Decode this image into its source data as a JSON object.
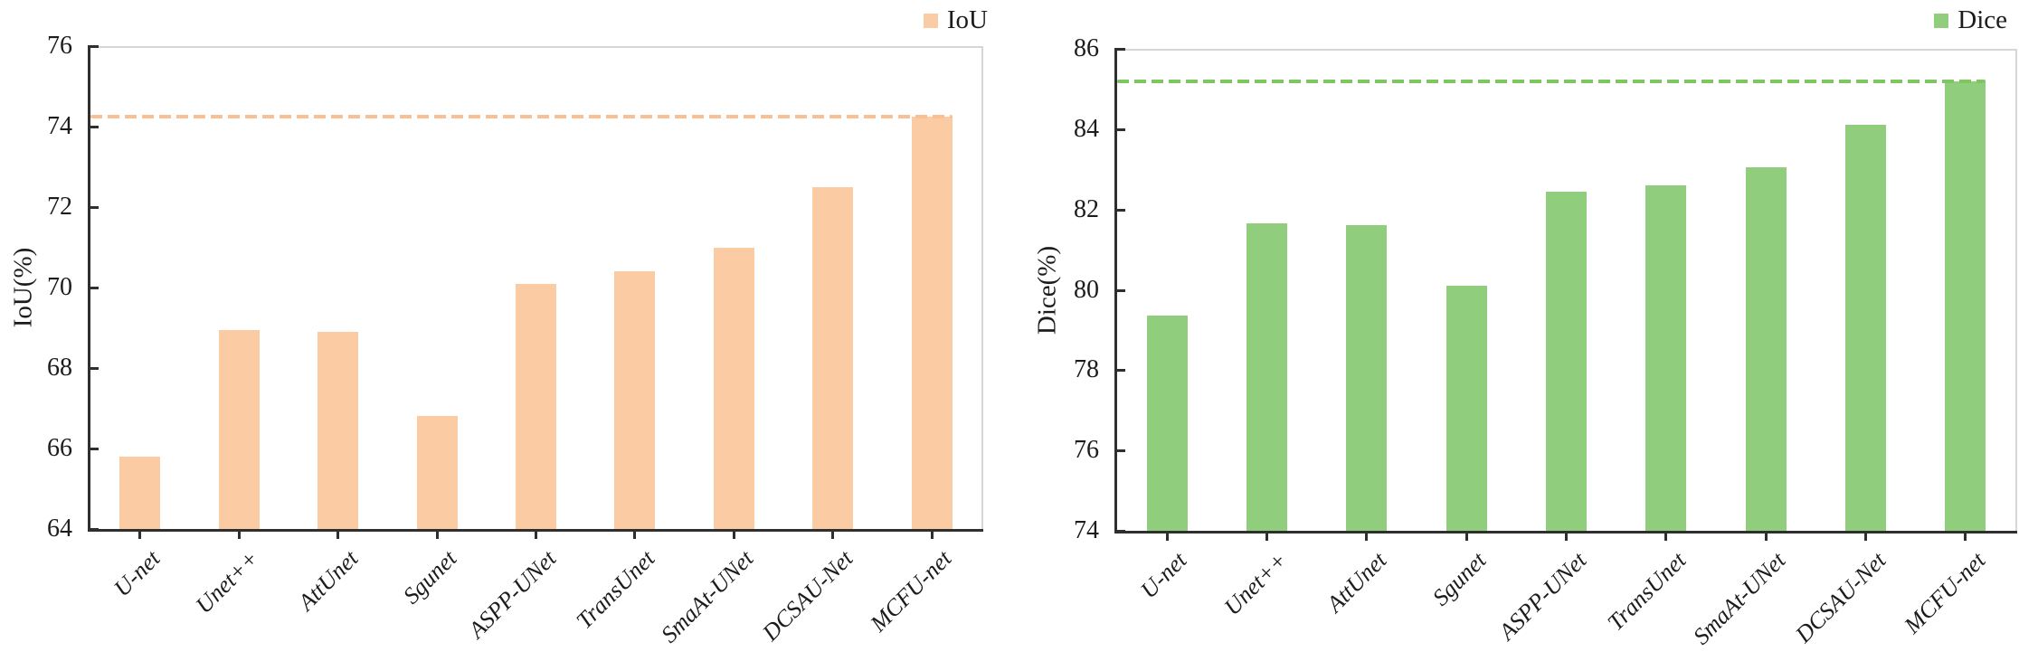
{
  "chart_data": [
    {
      "type": "bar",
      "title": "",
      "legend": "IoU",
      "legend_position": "top-right",
      "ylabel": "IoU(%)",
      "xlabel": "",
      "categories": [
        "U-net",
        "Unet++",
        "AttUnet",
        "Sgunet",
        "ASPP-UNet",
        "TransUnet",
        "SmaAt-UNet",
        "DCSAU-Net",
        "MCFU-net"
      ],
      "values": [
        65.8,
        68.95,
        68.9,
        66.8,
        70.1,
        70.4,
        71.0,
        72.5,
        74.25
      ],
      "reference_line": 74.25,
      "reference_line_style": "dashed",
      "ylim": [
        64,
        76
      ],
      "yticks": [
        64,
        66,
        68,
        70,
        72,
        74,
        76
      ],
      "grid": false,
      "bar_color": "#FBCBA3",
      "reference_line_color": "#F9BF95"
    },
    {
      "type": "bar",
      "title": "",
      "legend": "Dice",
      "legend_position": "top-right",
      "ylabel": "Dice(%)",
      "xlabel": "",
      "categories": [
        "U-net",
        "Unet++",
        "AttUnet",
        "Sgunet",
        "ASPP-UNet",
        "TransUnet",
        "SmaAt-UNet",
        "DCSAU-Net",
        "MCFU-net"
      ],
      "values": [
        79.35,
        81.65,
        81.6,
        80.1,
        82.45,
        82.6,
        83.05,
        84.1,
        85.2
      ],
      "reference_line": 85.2,
      "reference_line_style": "dashed",
      "ylim": [
        74,
        86
      ],
      "yticks": [
        74,
        76,
        78,
        80,
        82,
        84,
        86
      ],
      "grid": false,
      "bar_color": "#90CE7D",
      "reference_line_color": "#7CC75F"
    }
  ]
}
